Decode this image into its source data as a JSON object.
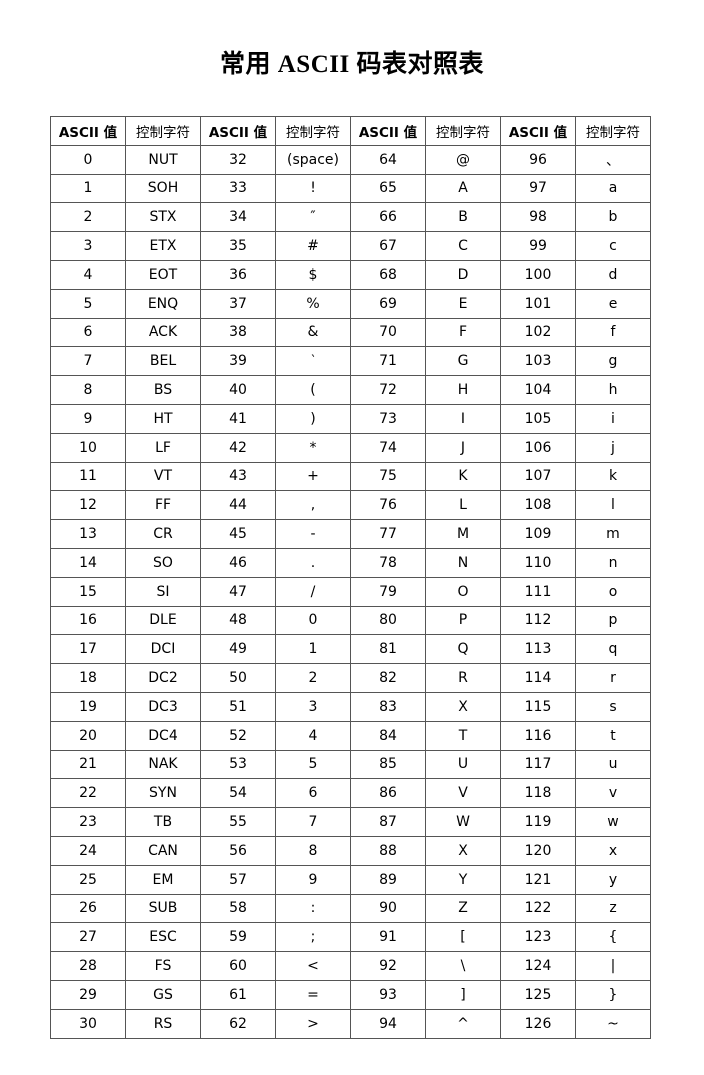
{
  "title": "常用 ASCII 码表对照表",
  "headers": [
    "ASCII 值",
    "控制字符",
    "ASCII 值",
    "控制字符",
    "ASCII 值",
    "控制字符",
    "ASCII 值",
    "控制字符"
  ],
  "rows": [
    [
      "0",
      "NUT",
      "32",
      "(space)",
      "64",
      "@",
      "96",
      "、"
    ],
    [
      "1",
      "SOH",
      "33",
      "!",
      "65",
      "A",
      "97",
      "a"
    ],
    [
      "2",
      "STX",
      "34",
      "″",
      "66",
      "B",
      "98",
      "b"
    ],
    [
      "3",
      "ETX",
      "35",
      "#",
      "67",
      "C",
      "99",
      "c"
    ],
    [
      "4",
      "EOT",
      "36",
      "$",
      "68",
      "D",
      "100",
      "d"
    ],
    [
      "5",
      "ENQ",
      "37",
      "%",
      "69",
      "E",
      "101",
      "e"
    ],
    [
      "6",
      "ACK",
      "38",
      "&",
      "70",
      "F",
      "102",
      "f"
    ],
    [
      "7",
      "BEL",
      "39",
      "‵",
      "71",
      "G",
      "103",
      "g"
    ],
    [
      "8",
      "BS",
      "40",
      "(",
      "72",
      "H",
      "104",
      "h"
    ],
    [
      "9",
      "HT",
      "41",
      ")",
      "73",
      "I",
      "105",
      "i"
    ],
    [
      "10",
      "LF",
      "42",
      "*",
      "74",
      "J",
      "106",
      "j"
    ],
    [
      "11",
      "VT",
      "43",
      "+",
      "75",
      "K",
      "107",
      "k"
    ],
    [
      "12",
      "FF",
      "44",
      ",",
      "76",
      "L",
      "108",
      "l"
    ],
    [
      "13",
      "CR",
      "45",
      "-",
      "77",
      "M",
      "109",
      "m"
    ],
    [
      "14",
      "SO",
      "46",
      ".",
      "78",
      "N",
      "110",
      "n"
    ],
    [
      "15",
      "SI",
      "47",
      "/",
      "79",
      "O",
      "111",
      "o"
    ],
    [
      "16",
      "DLE",
      "48",
      "0",
      "80",
      "P",
      "112",
      "p"
    ],
    [
      "17",
      "DCI",
      "49",
      "1",
      "81",
      "Q",
      "113",
      "q"
    ],
    [
      "18",
      "DC2",
      "50",
      "2",
      "82",
      "R",
      "114",
      "r"
    ],
    [
      "19",
      "DC3",
      "51",
      "3",
      "83",
      "X",
      "115",
      "s"
    ],
    [
      "20",
      "DC4",
      "52",
      "4",
      "84",
      "T",
      "116",
      "t"
    ],
    [
      "21",
      "NAK",
      "53",
      "5",
      "85",
      "U",
      "117",
      "u"
    ],
    [
      "22",
      "SYN",
      "54",
      "6",
      "86",
      "V",
      "118",
      "v"
    ],
    [
      "23",
      "TB",
      "55",
      "7",
      "87",
      "W",
      "119",
      "w"
    ],
    [
      "24",
      "CAN",
      "56",
      "8",
      "88",
      "X",
      "120",
      "x"
    ],
    [
      "25",
      "EM",
      "57",
      "9",
      "89",
      "Y",
      "121",
      "y"
    ],
    [
      "26",
      "SUB",
      "58",
      ":",
      "90",
      "Z",
      "122",
      "z"
    ],
    [
      "27",
      "ESC",
      "59",
      ";",
      "91",
      "[",
      "123",
      "{"
    ],
    [
      "28",
      "FS",
      "60",
      "<",
      "92",
      "\\",
      "124",
      "|"
    ],
    [
      "29",
      "GS",
      "61",
      "=",
      "93",
      "]",
      "125",
      "}"
    ],
    [
      "30",
      "RS",
      "62",
      ">",
      "94",
      "^",
      "126",
      "~"
    ]
  ]
}
